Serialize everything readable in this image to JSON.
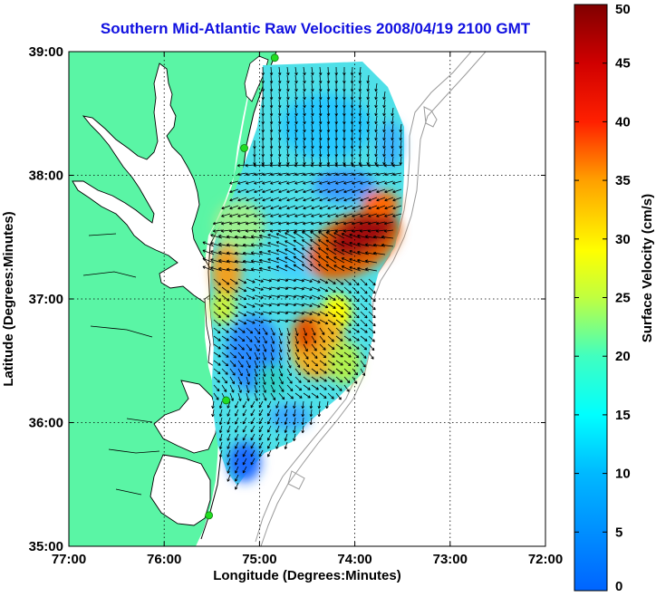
{
  "title": "Southern Mid-Atlantic Raw Velocities 2008/04/19 2100 GMT",
  "x_axis": {
    "label": "Longitude (Degrees:Minutes)",
    "range": [
      -77,
      -72
    ],
    "ticks": [
      {
        "value": -77,
        "label": "77:00"
      },
      {
        "value": -76,
        "label": "76:00"
      },
      {
        "value": -75,
        "label": "75:00"
      },
      {
        "value": -74,
        "label": "74:00"
      },
      {
        "value": -73,
        "label": "73:00"
      },
      {
        "value": -72,
        "label": "72:00"
      }
    ]
  },
  "y_axis": {
    "label": "Latitude (Degrees:Minutes)",
    "range": [
      35,
      39
    ],
    "ticks": [
      {
        "value": 35,
        "label": "35:00"
      },
      {
        "value": 36,
        "label": "36:00"
      },
      {
        "value": 37,
        "label": "37:00"
      },
      {
        "value": 38,
        "label": "38:00"
      },
      {
        "value": 39,
        "label": "39:00"
      }
    ]
  },
  "grid": true,
  "colorbar": {
    "label": "Surface Velocity (cm/s)",
    "range": [
      0,
      50
    ],
    "ticks": [
      {
        "value": 0,
        "label": "0"
      },
      {
        "value": 5,
        "label": "5"
      },
      {
        "value": 10,
        "label": "10"
      },
      {
        "value": 15,
        "label": "15"
      },
      {
        "value": 20,
        "label": "20"
      },
      {
        "value": 25,
        "label": "25"
      },
      {
        "value": 30,
        "label": "30"
      },
      {
        "value": 35,
        "label": "35"
      },
      {
        "value": 40,
        "label": "40"
      },
      {
        "value": 45,
        "label": "45"
      },
      {
        "value": 50,
        "label": "50"
      }
    ]
  },
  "colors": {
    "land": "#5af5a5",
    "water": "#ffffff",
    "coastline": "#000000",
    "bathymetry": "#9a9a9a",
    "station": "#22dd22",
    "title": "#1010e0",
    "arrow": "#000000"
  },
  "stations": [
    {
      "lon": -74.84,
      "lat": 38.95
    },
    {
      "lon": -75.16,
      "lat": 38.22
    },
    {
      "lon": -75.35,
      "lat": 36.18
    },
    {
      "lon": -75.53,
      "lat": 35.25
    }
  ]
}
